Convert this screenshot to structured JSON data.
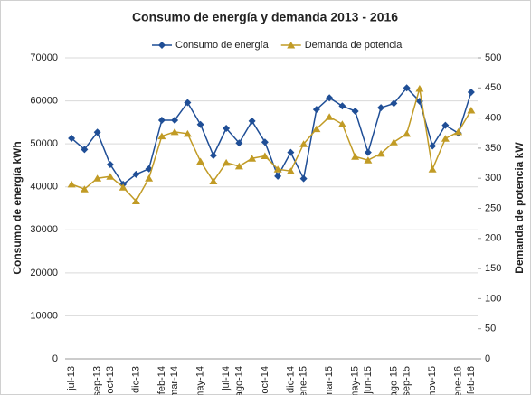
{
  "chart_data": {
    "type": "line",
    "title": "Consumo de energía y demanda 2013 - 2016",
    "ylabel": "Consumo de energía kWh",
    "y2label": "Demanda de potencia kW",
    "categories": [
      "jul-13",
      null,
      "sep-13",
      "oct-13",
      null,
      "dic-13",
      null,
      "feb-14",
      "mar-14",
      null,
      "may-14",
      null,
      "jul-14",
      "ago-14",
      null,
      "oct-14",
      null,
      "dic-14",
      "ene-15",
      null,
      "mar-15",
      null,
      "may-15",
      "jun-15",
      null,
      "ago-15",
      "sep-15",
      null,
      "nov-15",
      null,
      "ene-16",
      "feb-16"
    ],
    "series": [
      {
        "name": "Consumo de energía",
        "color": "#1f4e96",
        "marker": "diamond",
        "values": [
          51300,
          48700,
          52700,
          45200,
          40600,
          42900,
          44200,
          55500,
          55500,
          59600,
          54500,
          47300,
          53600,
          50200,
          55300,
          50400,
          42500,
          48000,
          41900,
          58000,
          60700,
          58800,
          57600,
          48000,
          58400,
          59400,
          63000,
          59900,
          49500,
          54300,
          52500,
          62000
        ]
      },
      {
        "name": "Demanda de potencia",
        "color": "#c19b25",
        "marker": "triangle",
        "axis": "y2",
        "values": [
          290,
          282,
          300,
          303,
          285,
          262,
          300,
          370,
          377,
          374,
          328,
          295,
          326,
          320,
          333,
          337,
          315,
          312,
          357,
          382,
          402,
          390,
          336,
          330,
          341,
          360,
          374,
          449,
          315,
          366,
          377,
          413
        ]
      }
    ],
    "ylim": [
      0,
      70000
    ],
    "yticks": [
      0,
      10000,
      20000,
      30000,
      40000,
      50000,
      60000,
      70000
    ],
    "y2lim": [
      0,
      500
    ],
    "y2ticks": [
      0,
      50,
      100,
      150,
      200,
      250,
      300,
      350,
      400,
      450,
      500
    ],
    "grid": true,
    "legend": "top"
  }
}
